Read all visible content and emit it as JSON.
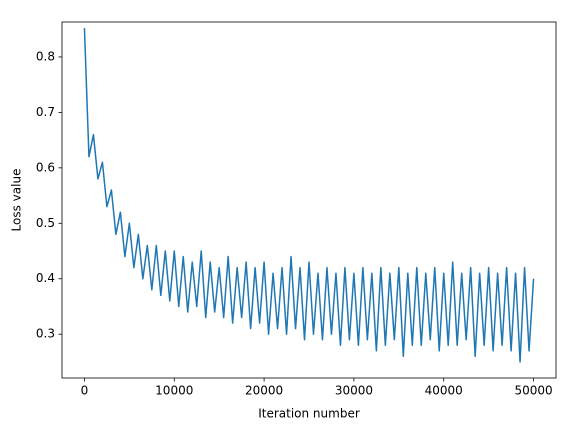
{
  "chart_data": {
    "type": "line",
    "xlabel": "Iteration number",
    "ylabel": "Loss value",
    "xlim": [
      -2500,
      52500
    ],
    "ylim": [
      0.221,
      0.863
    ],
    "xticks": [
      0,
      10000,
      20000,
      30000,
      40000,
      50000
    ],
    "yticks": [
      0.3,
      0.4,
      0.5,
      0.6,
      0.7,
      0.8
    ],
    "grid": false,
    "x": [
      0,
      500,
      1000,
      1500,
      2000,
      2500,
      3000,
      3500,
      4000,
      4500,
      5000,
      5500,
      6000,
      6500,
      7000,
      7500,
      8000,
      8500,
      9000,
      9500,
      10000,
      10500,
      11000,
      11500,
      12000,
      12500,
      13000,
      13500,
      14000,
      14500,
      15000,
      15500,
      16000,
      16500,
      17000,
      17500,
      18000,
      18500,
      19000,
      19500,
      20000,
      20500,
      21000,
      21500,
      22000,
      22500,
      23000,
      23500,
      24000,
      24500,
      25000,
      25500,
      26000,
      26500,
      27000,
      27500,
      28000,
      28500,
      29000,
      29500,
      30000,
      30500,
      31000,
      31500,
      32000,
      32500,
      33000,
      33500,
      34000,
      34500,
      35000,
      35500,
      36000,
      36500,
      37000,
      37500,
      38000,
      38500,
      39000,
      39500,
      40000,
      40500,
      41000,
      41500,
      42000,
      42500,
      43000,
      43500,
      44000,
      44500,
      45000,
      45500,
      46000,
      46500,
      47000,
      47500,
      48000,
      48500,
      49000,
      49500,
      50000
    ],
    "series": [
      {
        "name": "loss",
        "color": "#1f77b4",
        "values": [
          0.852,
          0.62,
          0.66,
          0.58,
          0.61,
          0.53,
          0.56,
          0.48,
          0.52,
          0.44,
          0.5,
          0.42,
          0.48,
          0.4,
          0.46,
          0.38,
          0.46,
          0.37,
          0.45,
          0.36,
          0.45,
          0.35,
          0.44,
          0.34,
          0.43,
          0.35,
          0.45,
          0.33,
          0.43,
          0.34,
          0.42,
          0.33,
          0.44,
          0.32,
          0.42,
          0.33,
          0.43,
          0.31,
          0.42,
          0.32,
          0.43,
          0.3,
          0.41,
          0.31,
          0.42,
          0.3,
          0.44,
          0.31,
          0.42,
          0.29,
          0.43,
          0.3,
          0.41,
          0.29,
          0.42,
          0.3,
          0.41,
          0.28,
          0.42,
          0.29,
          0.41,
          0.28,
          0.42,
          0.29,
          0.41,
          0.27,
          0.42,
          0.28,
          0.41,
          0.29,
          0.42,
          0.26,
          0.41,
          0.28,
          0.42,
          0.28,
          0.41,
          0.29,
          0.42,
          0.27,
          0.41,
          0.28,
          0.43,
          0.28,
          0.41,
          0.29,
          0.42,
          0.26,
          0.41,
          0.28,
          0.42,
          0.27,
          0.41,
          0.28,
          0.42,
          0.27,
          0.41,
          0.25,
          0.42,
          0.27,
          0.4
        ]
      }
    ]
  }
}
